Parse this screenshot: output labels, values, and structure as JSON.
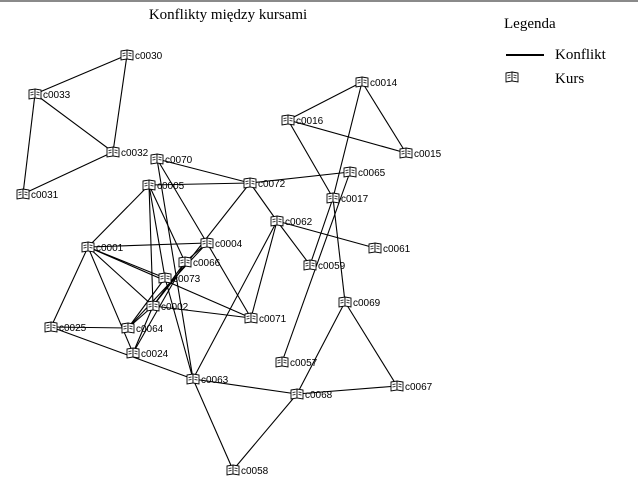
{
  "title": "Konflikty między kursami",
  "legend": {
    "title": "Legenda",
    "edge_label": "Konflikt",
    "node_label": "Kurs"
  },
  "icons": {
    "node": "book-icon"
  },
  "colors": {
    "edge": "#000000",
    "background": "#ffffff"
  },
  "nodes": [
    {
      "id": "c0030"
    },
    {
      "id": "c0033"
    },
    {
      "id": "c0032"
    },
    {
      "id": "c0031"
    },
    {
      "id": "c0014"
    },
    {
      "id": "c0016"
    },
    {
      "id": "c0015"
    },
    {
      "id": "c0070"
    },
    {
      "id": "c0065"
    },
    {
      "id": "c0017"
    },
    {
      "id": "c0005"
    },
    {
      "id": "c0072"
    },
    {
      "id": "c0062"
    },
    {
      "id": "c0001"
    },
    {
      "id": "c0004"
    },
    {
      "id": "c0061"
    },
    {
      "id": "c0066"
    },
    {
      "id": "c0059"
    },
    {
      "id": "c0073"
    },
    {
      "id": "c0069"
    },
    {
      "id": "c0002"
    },
    {
      "id": "c0071"
    },
    {
      "id": "c0025"
    },
    {
      "id": "c0064"
    },
    {
      "id": "c0024"
    },
    {
      "id": "c0057"
    },
    {
      "id": "c0063"
    },
    {
      "id": "c0067"
    },
    {
      "id": "c0068"
    },
    {
      "id": "c0058"
    }
  ],
  "edges": [
    [
      "c0030",
      "c0033"
    ],
    [
      "c0030",
      "c0032"
    ],
    [
      "c0033",
      "c0032"
    ],
    [
      "c0033",
      "c0031"
    ],
    [
      "c0031",
      "c0032"
    ],
    [
      "c0014",
      "c0016"
    ],
    [
      "c0014",
      "c0015"
    ],
    [
      "c0014",
      "c0017"
    ],
    [
      "c0016",
      "c0015"
    ],
    [
      "c0016",
      "c0017"
    ],
    [
      "c0070",
      "c0072"
    ],
    [
      "c0070",
      "c0004"
    ],
    [
      "c0070",
      "c0063"
    ],
    [
      "c0005",
      "c0072"
    ],
    [
      "c0005",
      "c0001"
    ],
    [
      "c0005",
      "c0073"
    ],
    [
      "c0005",
      "c0002"
    ],
    [
      "c0005",
      "c0066"
    ],
    [
      "c0072",
      "c0065"
    ],
    [
      "c0072",
      "c0062"
    ],
    [
      "c0072",
      "c0002"
    ],
    [
      "c0065",
      "c0057"
    ],
    [
      "c0017",
      "c0059"
    ],
    [
      "c0017",
      "c0069"
    ],
    [
      "c0062",
      "c0061"
    ],
    [
      "c0062",
      "c0059"
    ],
    [
      "c0062",
      "c0071"
    ],
    [
      "c0062",
      "c0063"
    ],
    [
      "c0001",
      "c0004"
    ],
    [
      "c0001",
      "c0073"
    ],
    [
      "c0001",
      "c0002"
    ],
    [
      "c0001",
      "c0025"
    ],
    [
      "c0001",
      "c0024"
    ],
    [
      "c0001",
      "c0071"
    ],
    [
      "c0004",
      "c0066"
    ],
    [
      "c0004",
      "c0071"
    ],
    [
      "c0004",
      "c0064"
    ],
    [
      "c0066",
      "c0002"
    ],
    [
      "c0066",
      "c0024"
    ],
    [
      "c0073",
      "c0063"
    ],
    [
      "c0073",
      "c0064"
    ],
    [
      "c0002",
      "c0071"
    ],
    [
      "c0002",
      "c0064"
    ],
    [
      "c0002",
      "c0024"
    ],
    [
      "c0025",
      "c0064"
    ],
    [
      "c0025",
      "c0063"
    ],
    [
      "c0069",
      "c0067"
    ],
    [
      "c0069",
      "c0068"
    ],
    [
      "c0063",
      "c0068"
    ],
    [
      "c0063",
      "c0058"
    ],
    [
      "c0068",
      "c0067"
    ],
    [
      "c0068",
      "c0058"
    ]
  ]
}
